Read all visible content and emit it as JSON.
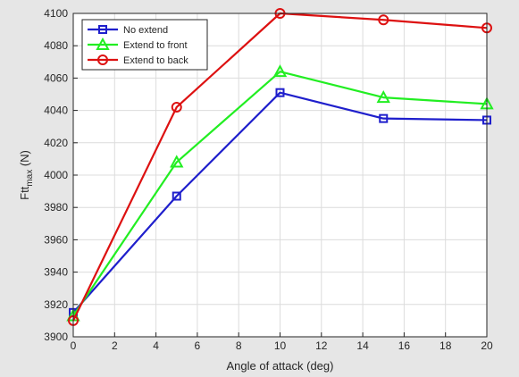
{
  "chart_data": {
    "type": "line",
    "title": "",
    "xlabel": "Angle of attack (deg)",
    "ylabel_main": "Ftt",
    "ylabel_sub": "max",
    "ylabel_unit": " (N)",
    "xlim": [
      0,
      20
    ],
    "ylim": [
      3900,
      4100
    ],
    "xticks": [
      0,
      2,
      4,
      6,
      8,
      10,
      12,
      14,
      16,
      18,
      20
    ],
    "yticks": [
      3900,
      3920,
      3940,
      3960,
      3980,
      4000,
      4020,
      4040,
      4060,
      4080,
      4100
    ],
    "grid": true,
    "legend_position": "top-left",
    "x": [
      0,
      5,
      10,
      15,
      20
    ],
    "series": [
      {
        "name": "No extend",
        "color": "#1f1fcc",
        "marker": "square",
        "values": [
          3915,
          3987,
          4051,
          4035,
          4034
        ]
      },
      {
        "name": "Extend to front",
        "color": "#22ee22",
        "marker": "triangle",
        "values": [
          3913,
          4008,
          4064,
          4048,
          4044
        ]
      },
      {
        "name": "Extend to back",
        "color": "#dd1111",
        "marker": "circle",
        "values": [
          3910,
          4042,
          4100,
          4096,
          4091
        ]
      }
    ]
  }
}
